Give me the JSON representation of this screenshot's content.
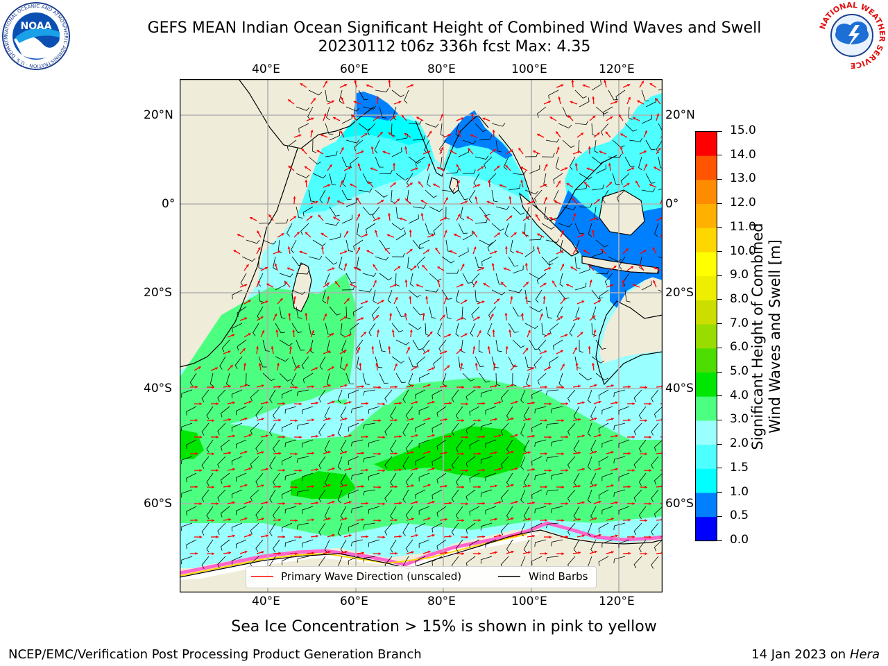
{
  "header": {
    "title_line1": "GEFS MEAN Indian Ocean Significant Height of Combined Wind Waves and Swell",
    "title_line2": "20230112 t06z 336h fcst   Max: 4.35"
  },
  "logos": {
    "noaa": {
      "text": "NOAA",
      "ring_text": "NATIONAL OCEANIC AND ATMOSPHERIC ADMINISTRATION · U.S. DEPARTMENT OF COMMERCE"
    },
    "nws": {
      "ring_text": "NATIONAL WEATHER SERVICE"
    }
  },
  "map": {
    "lon_labels": [
      "40°E",
      "60°E",
      "80°E",
      "100°E",
      "120°E"
    ],
    "lat_labels_left": [
      "20°N",
      "0°",
      "20°S",
      "40°S",
      "60°S"
    ],
    "lat_labels_right": [
      "20°N",
      "0°",
      "20°S",
      "40°S",
      "60°S"
    ],
    "colors": {
      "land": "#efecd9",
      "ice": "#ff66cc",
      "grid": "#b0b0b0"
    }
  },
  "legend": {
    "wave_label": "Primary Wave Direction (unscaled)",
    "wind_label": "Wind Barbs",
    "wave_color": "#ff0000",
    "wind_color": "#000000"
  },
  "colorbar": {
    "label_line1": "Significant Height of Combined",
    "label_line2": "Wind Waves and Swell [m]",
    "ticks": [
      "0.0",
      "0.5",
      "1.0",
      "1.5",
      "2.0",
      "3.0",
      "4.0",
      "5.0",
      "6.0",
      "7.0",
      "8.0",
      "9.0",
      "10.0",
      "11.0",
      "12.0",
      "13.0",
      "14.0",
      "15.0"
    ],
    "colors": [
      "#0000ff",
      "#0080ff",
      "#00ffff",
      "#4dffff",
      "#99ffff",
      "#4dff80",
      "#00e600",
      "#4ddd00",
      "#99dd00",
      "#ccdd00",
      "#eeee00",
      "#ffff00",
      "#ffd700",
      "#ffb000",
      "#ff8c00",
      "#ff5500",
      "#ff0000"
    ]
  },
  "footer": {
    "sea_ice_note": "Sea Ice Concentration > 15% is shown in pink to yellow",
    "left_credit": "NCEP/EMC/Verification Post Processing Product Generation Branch",
    "right_date": "14 Jan 2023 on ",
    "right_host": "Hera"
  }
}
